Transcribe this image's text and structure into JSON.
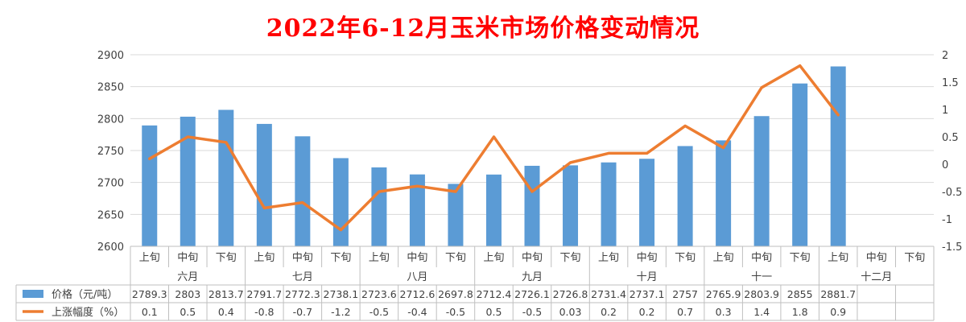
{
  "chart_data": {
    "type": "bar",
    "title": "2022年6-12月玉米市场价格变动情况",
    "sub_categories": [
      "上旬",
      "中旬",
      "下旬",
      "上旬",
      "中旬",
      "下旬",
      "上旬",
      "中旬",
      "下旬",
      "上旬",
      "中旬",
      "下旬",
      "上旬",
      "中旬",
      "下旬",
      "上旬",
      "中旬",
      "下旬",
      "上旬",
      "中旬",
      "下旬"
    ],
    "groups": [
      "六月",
      "七月",
      "八月",
      "九月",
      "十月",
      "十一",
      "十二月"
    ],
    "ylim": [
      2600,
      2900
    ],
    "yticks": [
      "2600",
      "2650",
      "2700",
      "2750",
      "2800",
      "2850",
      "2900"
    ],
    "y2lim": [
      -1.5,
      2
    ],
    "y2ticks": [
      "-1.5",
      "-1",
      "-0.5",
      "0",
      "0.5",
      "1",
      "1.5",
      "2"
    ],
    "grid": "horizontal",
    "legend": "table-left",
    "series": [
      {
        "name": "价格（元/吨）",
        "type": "bar",
        "axis": "left",
        "color": "#5b9bd5",
        "values": [
          2789.3,
          2803,
          2813.7,
          2791.7,
          2772.3,
          2738.1,
          2723.6,
          2712.6,
          2697.8,
          2712.4,
          2726.1,
          2726.8,
          2731.4,
          2737.1,
          2757,
          2765.9,
          2803.9,
          2855,
          2881.7,
          null,
          null
        ],
        "labels": [
          "2789.3",
          "2803",
          "2813.7",
          "2791.7",
          "2772.3",
          "2738.1",
          "2723.6",
          "2712.6",
          "2697.8",
          "2712.4",
          "2726.1",
          "2726.8",
          "2731.4",
          "2737.1",
          "2757",
          "2765.9",
          "2803.9",
          "2855",
          "2881.7",
          "",
          ""
        ]
      },
      {
        "name": "上涨幅度（%）",
        "type": "line",
        "axis": "right",
        "color": "#ed7d31",
        "values": [
          0.1,
          0.5,
          0.4,
          -0.8,
          -0.7,
          -1.2,
          -0.5,
          -0.4,
          -0.5,
          0.5,
          -0.5,
          0.03,
          0.2,
          0.2,
          0.7,
          0.3,
          1.4,
          1.8,
          0.9,
          null,
          null
        ],
        "labels": [
          "0.1",
          "0.5",
          "0.4",
          "-0.8",
          "-0.7",
          "-1.2",
          "-0.5",
          "-0.4",
          "-0.5",
          "0.5",
          "-0.5",
          "0.03",
          "0.2",
          "0.2",
          "0.7",
          "0.3",
          "1.4",
          "1.8",
          "0.9",
          "",
          ""
        ]
      }
    ]
  }
}
